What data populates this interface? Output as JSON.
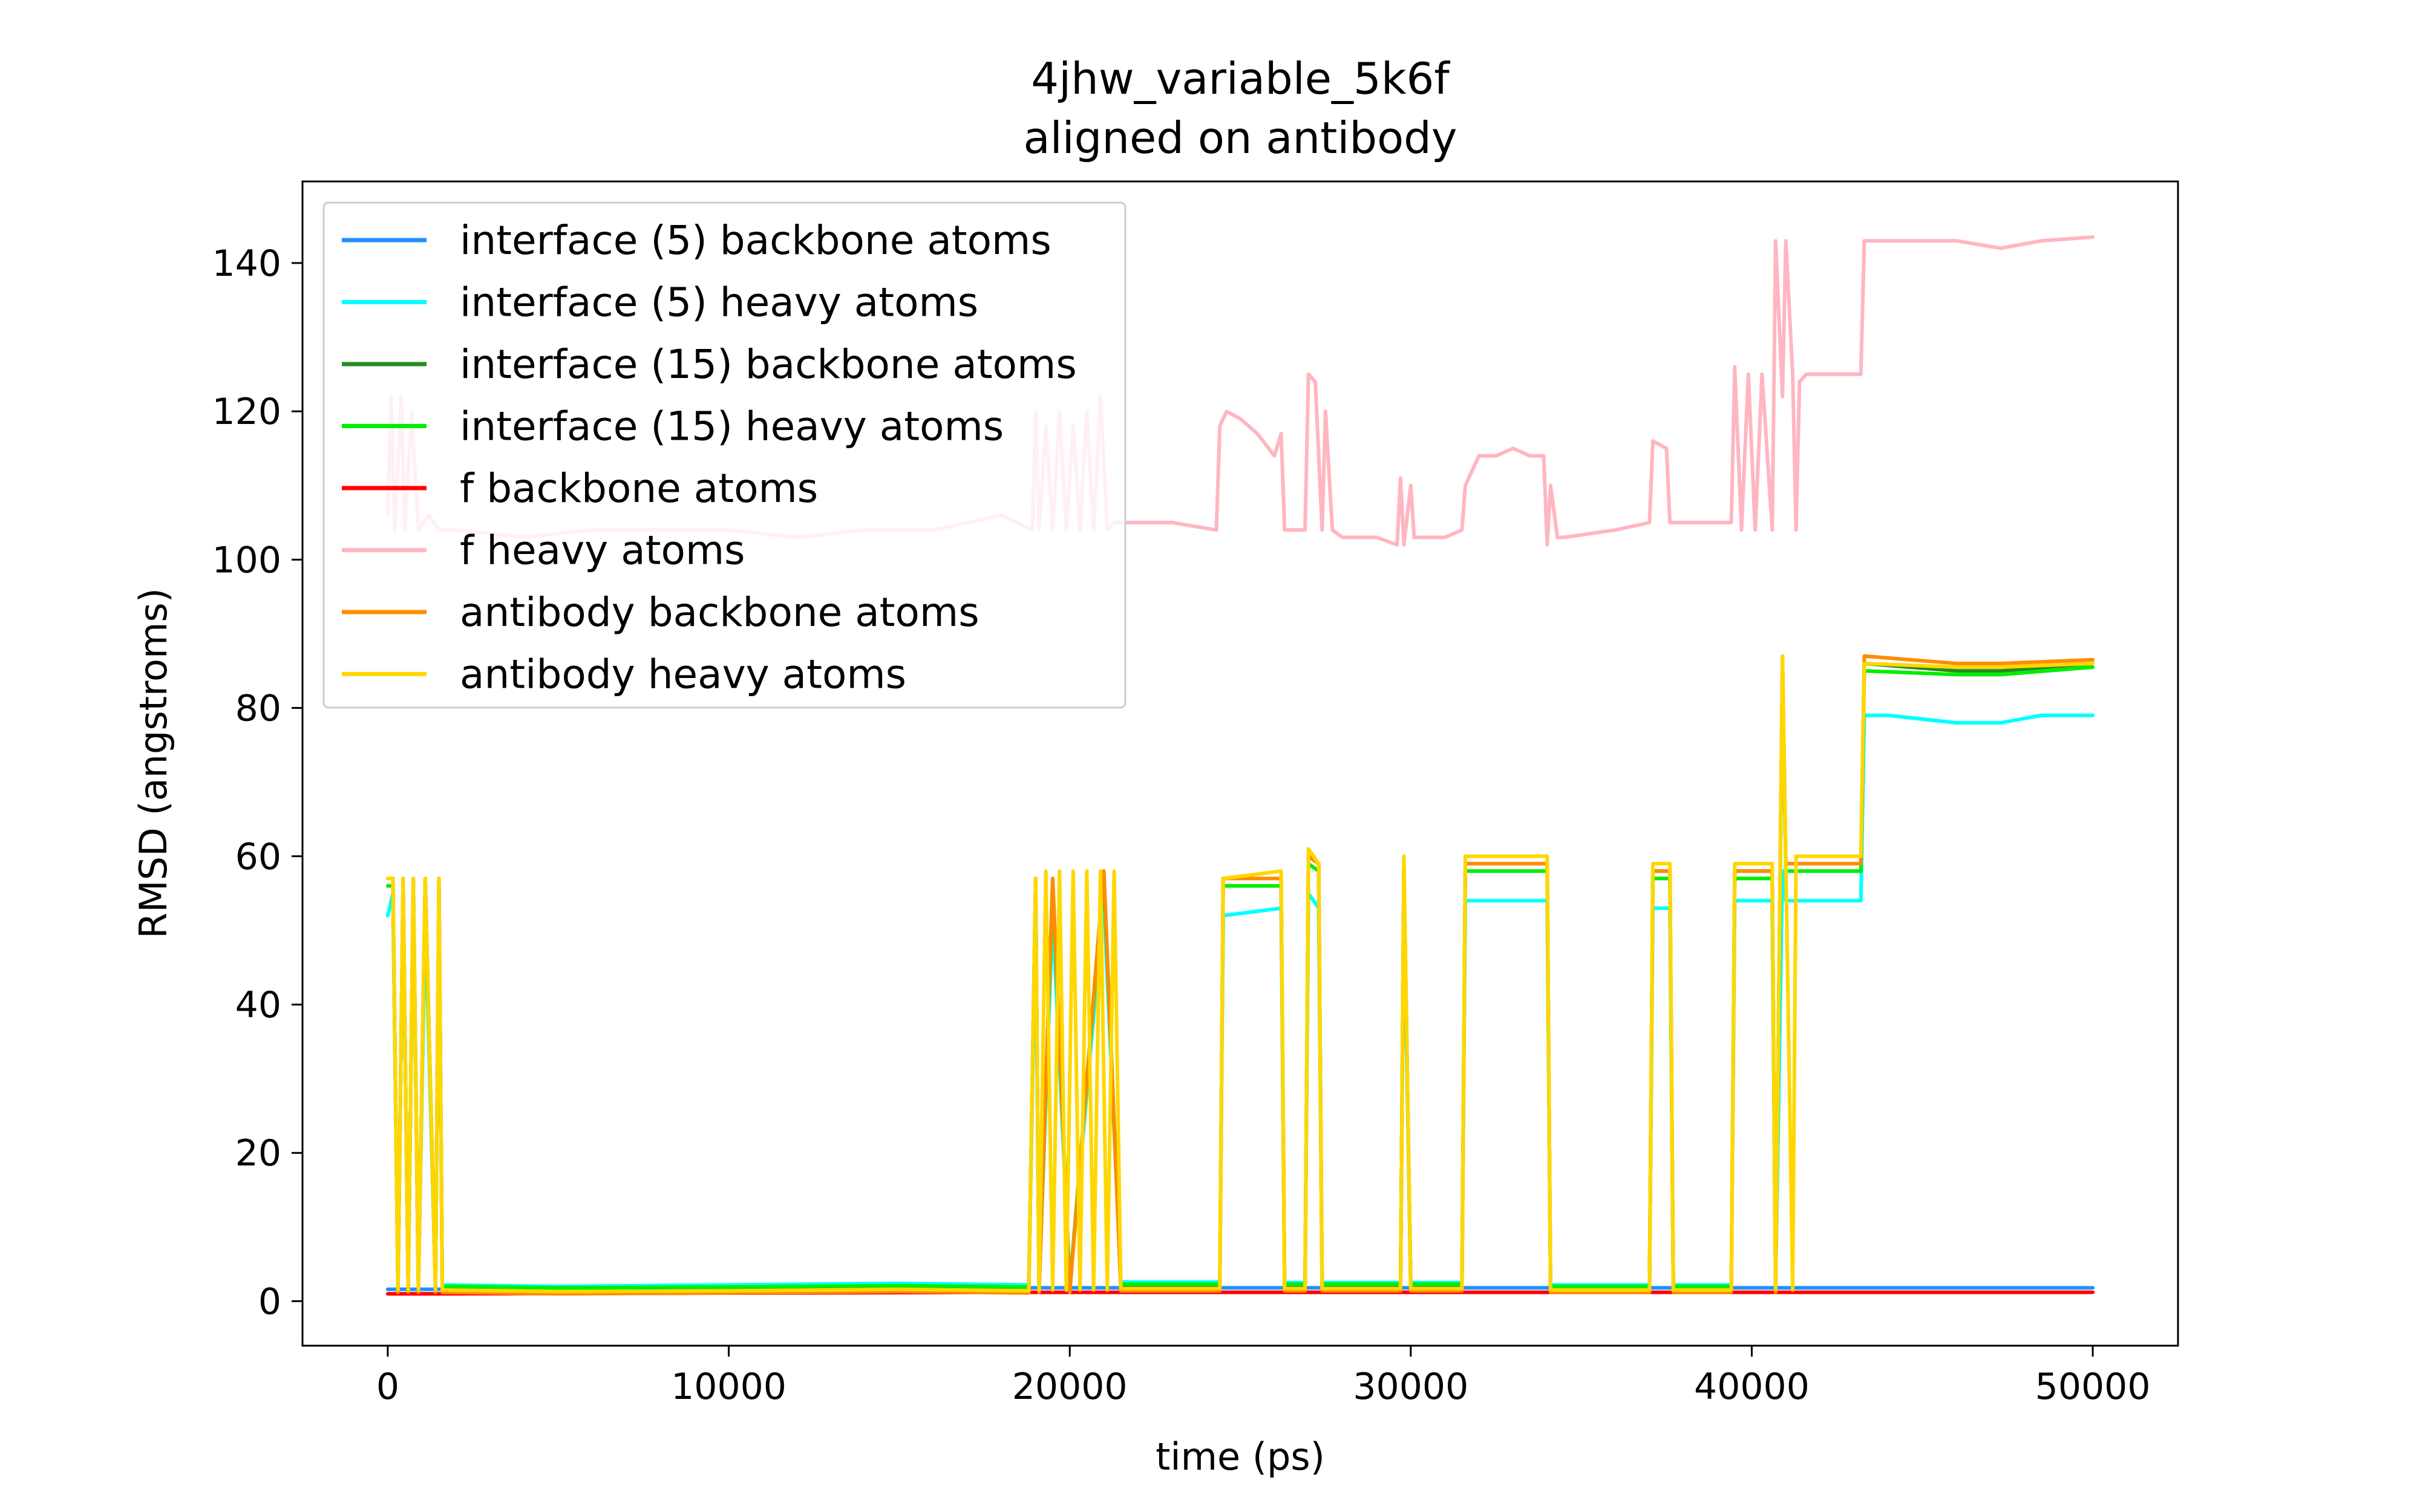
{
  "chart_data": {
    "type": "line",
    "title": "4jhw_variable_5k6f",
    "subtitle": "aligned on antibody",
    "xlabel": "time (ps)",
    "ylabel": "RMSD (angstroms)",
    "xlim": [
      -2500,
      52500
    ],
    "ylim": [
      -6,
      151
    ],
    "xticks": [
      0,
      10000,
      20000,
      30000,
      40000,
      50000
    ],
    "xtick_labels": [
      "0",
      "10000",
      "20000",
      "30000",
      "40000",
      "50000"
    ],
    "yticks": [
      0,
      20,
      40,
      60,
      80,
      100,
      120,
      140
    ],
    "ytick_labels": [
      "0",
      "20",
      "40",
      "60",
      "80",
      "100",
      "120",
      "140"
    ],
    "grid": false,
    "legend_position": "top-left",
    "series": [
      {
        "name": "interface (5) backbone atoms",
        "color": "#1e90ff",
        "x": [
          0,
          1600,
          19000,
          43300,
          50000
        ],
        "y": [
          1.6,
          1.6,
          1.8,
          1.8,
          1.8
        ]
      },
      {
        "name": "interface (5) heavy atoms",
        "color": "#00ffff",
        "x": [
          0,
          150,
          300,
          450,
          600,
          750,
          900,
          1100,
          1400,
          1500,
          1600,
          1700,
          5000,
          10000,
          15000,
          18800,
          19000,
          19100,
          19500,
          20000,
          21000,
          21500,
          24400,
          24500,
          26200,
          26300,
          26900,
          27000,
          27300,
          27400,
          29700,
          29800,
          30000,
          30200,
          31500,
          31600,
          32300,
          34000,
          34100,
          37000,
          37100,
          37600,
          37700,
          39400,
          39500,
          40600,
          40700,
          40900,
          41000,
          41200,
          43200,
          43300,
          44000,
          46000,
          47300,
          48500,
          50000
        ],
        "y": [
          52,
          55,
          2,
          55,
          2,
          55,
          2,
          52,
          2,
          55,
          2,
          2.2,
          2.0,
          2.2,
          2.4,
          2.2,
          52,
          2,
          52,
          2,
          54,
          2.6,
          2.6,
          52,
          53,
          2.5,
          2.5,
          55,
          53,
          2.5,
          2.5,
          54,
          2.5,
          2.5,
          2.5,
          54,
          54,
          54,
          2.2,
          2.2,
          53,
          53,
          2.2,
          2.2,
          54,
          54,
          2,
          58,
          54,
          54,
          54,
          79,
          79,
          78,
          78,
          79,
          79
        ]
      },
      {
        "name": "interface (15) backbone atoms",
        "color": "#228b22",
        "x": [
          0,
          150,
          300,
          450,
          600,
          750,
          900,
          1100,
          1400,
          1500,
          1600,
          1700,
          5000,
          10000,
          15000,
          18800,
          19000,
          19100,
          19500,
          20000,
          21000,
          21500,
          24400,
          24500,
          26200,
          26300,
          26900,
          27000,
          27300,
          27400,
          29700,
          29800,
          30000,
          30200,
          31500,
          31600,
          34000,
          34100,
          37000,
          37100,
          37600,
          37700,
          39400,
          39500,
          40600,
          40700,
          40900,
          41000,
          43200,
          43300,
          46000,
          47300,
          50000
        ],
        "y": [
          57,
          57,
          1.5,
          57,
          1.5,
          57,
          1.5,
          57,
          1.5,
          57,
          1.5,
          1.5,
          1.3,
          1.4,
          1.6,
          1.4,
          57,
          1.5,
          57,
          1.5,
          58,
          1.8,
          1.8,
          57,
          57,
          1.8,
          1.8,
          60,
          59,
          1.8,
          1.8,
          59,
          1.8,
          1.8,
          1.8,
          59,
          59,
          1.5,
          1.5,
          58,
          58,
          1.5,
          1.5,
          58,
          58,
          1.5,
          86,
          59,
          59,
          86,
          85,
          85,
          86
        ]
      },
      {
        "name": "interface (15) heavy atoms",
        "color": "#00ee00",
        "x": [
          0,
          150,
          300,
          450,
          600,
          750,
          900,
          1100,
          1400,
          1500,
          1600,
          1700,
          5000,
          10000,
          15000,
          18800,
          19000,
          19100,
          19500,
          20000,
          21000,
          21500,
          24400,
          24500,
          26200,
          26300,
          26900,
          27000,
          27300,
          27400,
          29700,
          29800,
          30000,
          30200,
          31500,
          31600,
          34000,
          34100,
          37000,
          37100,
          37600,
          37700,
          39400,
          39500,
          40600,
          40700,
          40900,
          41000,
          43200,
          43300,
          46000,
          47300,
          50000
        ],
        "y": [
          56,
          56,
          2,
          56,
          2,
          56,
          2,
          56,
          2,
          56,
          2,
          2,
          1.8,
          1.9,
          2.1,
          1.9,
          56,
          2,
          56,
          2,
          57,
          2.3,
          2.3,
          56,
          56,
          2.3,
          2.3,
          59,
          58,
          2.3,
          2.3,
          58,
          2.3,
          2.3,
          2.3,
          58,
          58,
          2,
          2,
          57,
          57,
          2,
          2,
          57,
          57,
          2,
          85,
          58,
          58,
          85,
          84.5,
          84.5,
          85.5
        ]
      },
      {
        "name": "f backbone atoms",
        "color": "#ff0000",
        "x": [
          0,
          1600,
          19000,
          43300,
          50000
        ],
        "y": [
          1.0,
          1.0,
          1.2,
          1.2,
          1.2
        ]
      },
      {
        "name": "f heavy atoms",
        "color": "#ffb6c1",
        "x": [
          0,
          100,
          200,
          400,
          500,
          700,
          900,
          1200,
          1500,
          2000,
          4000,
          6000,
          8000,
          10000,
          12000,
          14000,
          16000,
          17000,
          18000,
          18900,
          19000,
          19100,
          19300,
          19500,
          19700,
          19900,
          20100,
          20300,
          20500,
          20700,
          20900,
          21100,
          21300,
          21500,
          23000,
          24300,
          24400,
          24600,
          25000,
          25500,
          26000,
          26200,
          26300,
          26900,
          27000,
          27200,
          27400,
          27500,
          27700,
          28000,
          29000,
          29600,
          29700,
          29800,
          30000,
          30100,
          30300,
          31000,
          31500,
          31600,
          32000,
          32500,
          33000,
          33500,
          33900,
          34000,
          34100,
          34300,
          34500,
          36000,
          37000,
          37100,
          37500,
          37600,
          37700,
          38000,
          39400,
          39500,
          39700,
          39900,
          40100,
          40300,
          40600,
          40700,
          40900,
          41000,
          41200,
          41300,
          41400,
          41600,
          42000,
          43000,
          43200,
          43300,
          44000,
          46000,
          47300,
          48500,
          50000
        ],
        "y": [
          106,
          122,
          104,
          122,
          104,
          120,
          104,
          106,
          104,
          104,
          103,
          104,
          104,
          104,
          103,
          104,
          104,
          105,
          106,
          104,
          120,
          104,
          118,
          104,
          120,
          104,
          118,
          104,
          120,
          104,
          122,
          104,
          105,
          105,
          105,
          104,
          118,
          120,
          119,
          117,
          114,
          117,
          104,
          104,
          125,
          124,
          104,
          120,
          104,
          103,
          103,
          102,
          111,
          102,
          110,
          103,
          103,
          103,
          104,
          110,
          114,
          114,
          115,
          114,
          114,
          102,
          110,
          103,
          103,
          104,
          105,
          116,
          115,
          105,
          105,
          105,
          105,
          126,
          104,
          125,
          104,
          125,
          104,
          143,
          122,
          143,
          125,
          104,
          124,
          125,
          125,
          125,
          125,
          143,
          143,
          143,
          142,
          143,
          143.5
        ]
      },
      {
        "name": "antibody backbone atoms",
        "color": "#ff8c00",
        "x": [
          0,
          150,
          300,
          450,
          600,
          750,
          900,
          1100,
          1400,
          1500,
          1600,
          1700,
          5000,
          10000,
          15000,
          18800,
          19000,
          19100,
          19500,
          20000,
          21000,
          21500,
          24400,
          24500,
          26200,
          26300,
          26900,
          27000,
          27300,
          27400,
          29700,
          29800,
          30000,
          30200,
          31500,
          31600,
          34000,
          34100,
          37000,
          37100,
          37600,
          37700,
          39400,
          39500,
          40600,
          40700,
          40900,
          41000,
          43200,
          43300,
          46000,
          47300,
          50000
        ],
        "y": [
          57,
          57,
          1.2,
          57,
          1.2,
          57,
          1.2,
          57,
          1.2,
          57,
          1.2,
          1.2,
          1.0,
          1.1,
          1.3,
          1.1,
          57,
          1.2,
          57,
          1.2,
          58,
          1.4,
          1.4,
          57,
          57,
          1.4,
          1.4,
          60,
          59,
          1.4,
          1.4,
          59,
          1.4,
          1.4,
          1.4,
          59,
          59,
          1.2,
          1.2,
          58,
          58,
          1.2,
          1.2,
          58,
          58,
          1.2,
          87,
          59,
          59,
          87,
          86,
          86,
          86.5
        ]
      },
      {
        "name": "antibody heavy atoms",
        "color": "#ffd700",
        "x": [
          0,
          150,
          300,
          450,
          600,
          750,
          900,
          1100,
          1400,
          1500,
          1600,
          1700,
          5000,
          10000,
          15000,
          18800,
          19000,
          19100,
          19300,
          19500,
          19700,
          19900,
          20100,
          20300,
          20500,
          20700,
          20900,
          21100,
          21300,
          21500,
          24400,
          24500,
          26200,
          26300,
          26900,
          27000,
          27300,
          27400,
          29700,
          29800,
          30000,
          30200,
          31500,
          31600,
          34000,
          34100,
          37000,
          37100,
          37600,
          37700,
          39400,
          39500,
          40600,
          40700,
          40900,
          41000,
          41200,
          41300,
          43200,
          43300,
          46000,
          47300,
          50000
        ],
        "y": [
          57,
          57,
          1.5,
          57,
          1.5,
          57,
          1.5,
          57,
          1.5,
          57,
          1.5,
          1.5,
          1.3,
          1.4,
          1.6,
          1.4,
          57,
          1.5,
          58,
          1.5,
          58,
          1.5,
          58,
          1.5,
          58,
          1.5,
          58,
          1.5,
          58,
          1.7,
          1.7,
          57,
          58,
          1.7,
          1.7,
          61,
          59,
          1.7,
          1.7,
          60,
          1.7,
          1.7,
          1.7,
          60,
          60,
          1.5,
          1.5,
          59,
          59,
          1.5,
          1.5,
          59,
          59,
          1.5,
          87,
          59,
          1.5,
          60,
          60,
          86,
          85.5,
          85.5,
          86
        ]
      }
    ]
  }
}
